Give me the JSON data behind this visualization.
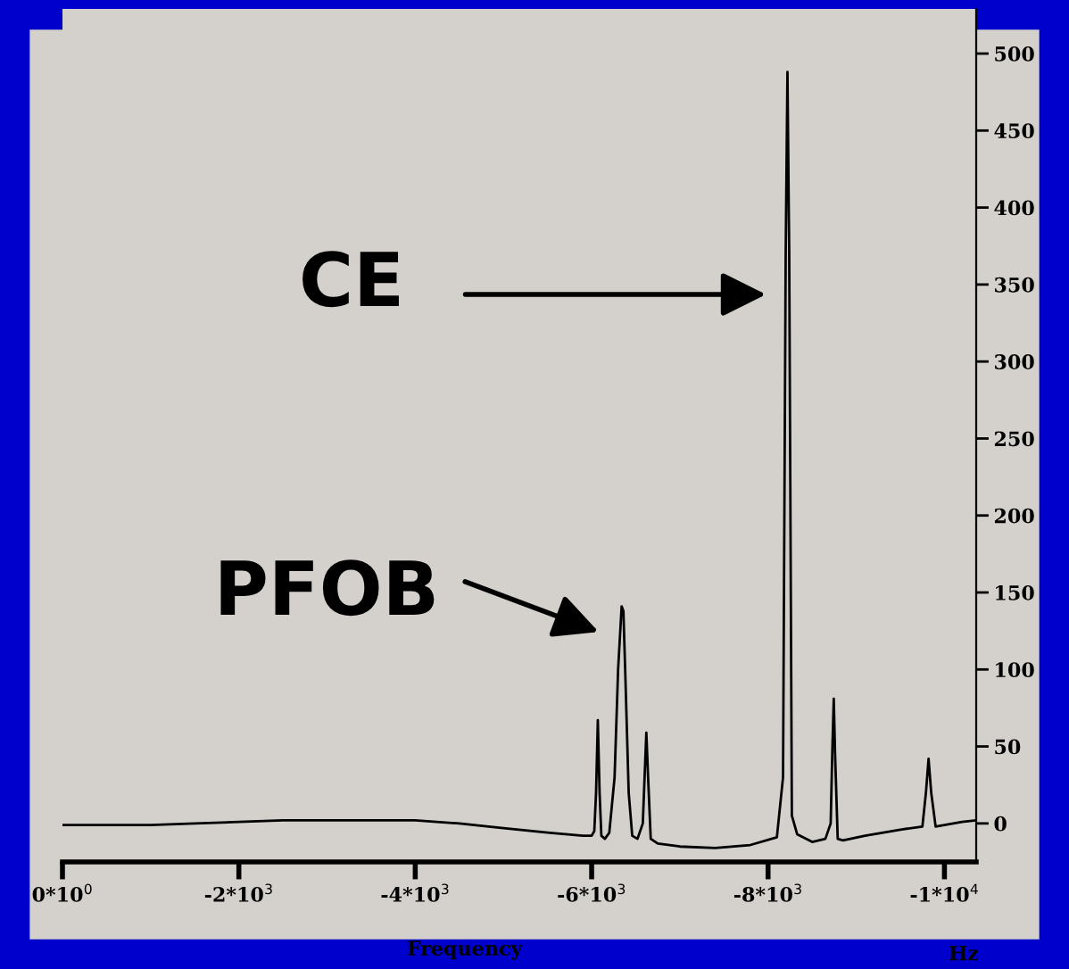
{
  "chart_data": {
    "type": "line",
    "xlabel": "Frequency",
    "x": [
      0,
      -500,
      -1000,
      -1500,
      -2000,
      -2500,
      -3000,
      -3500,
      -4000,
      -4500,
      -5000,
      -5500,
      -5900,
      -6000,
      -6030,
      -6050,
      -6070,
      -6090,
      -6110,
      -6150,
      -6200,
      -6260,
      -6300,
      -6340,
      -6360,
      -6380,
      -6420,
      -6460,
      -6520,
      -6580,
      -6600,
      -6620,
      -6640,
      -6670,
      -6750,
      -7000,
      -7400,
      -7800,
      -8100,
      -8170,
      -8200,
      -8220,
      -8240,
      -8270,
      -8330,
      -8500,
      -8650,
      -8710,
      -8730,
      -8745,
      -8760,
      -8790,
      -8850,
      -9100,
      -9500,
      -9750,
      -9790,
      -9820,
      -9850,
      -9900,
      -10000,
      -10200,
      -10360
    ],
    "series": [
      {
        "color": "#000000",
        "values": [
          -1,
          -1,
          -1,
          0,
          1,
          2,
          2,
          2,
          2,
          0,
          -3,
          -6,
          -8,
          -8,
          -5,
          20,
          67,
          20,
          -8,
          -10,
          -6,
          30,
          100,
          141,
          138,
          100,
          20,
          -8,
          -10,
          0,
          30,
          59,
          30,
          -10,
          -13,
          -15,
          -16,
          -14,
          -9,
          30,
          370,
          488,
          370,
          5,
          -7,
          -12,
          -10,
          0,
          50,
          81,
          45,
          -10,
          -11,
          -8,
          -4,
          -2,
          20,
          42,
          20,
          -2,
          -1,
          1,
          2
        ]
      }
    ],
    "xlim": [
      0,
      -10360
    ],
    "ylim": [
      -25,
      529
    ],
    "xticks": [
      {
        "value": 0,
        "label": "0*10$^{0}$"
      },
      {
        "value": -2000,
        "label": "-2*10$^{3}$"
      },
      {
        "value": -4000,
        "label": "-4*10$^{3}$"
      },
      {
        "value": -6000,
        "label": "-6*10$^{3}$"
      },
      {
        "value": -8000,
        "label": "-8*10$^{3}$"
      },
      {
        "value": -10000,
        "label": "-1*10$^{4}$"
      }
    ],
    "yticks": [
      0,
      50,
      100,
      150,
      200,
      250,
      300,
      350,
      400,
      450,
      500
    ],
    "grid": false,
    "legend": false,
    "marker": "none",
    "line_style": "solid",
    "annotations": [
      "CE",
      "PFOB",
      "Hz"
    ]
  }
}
